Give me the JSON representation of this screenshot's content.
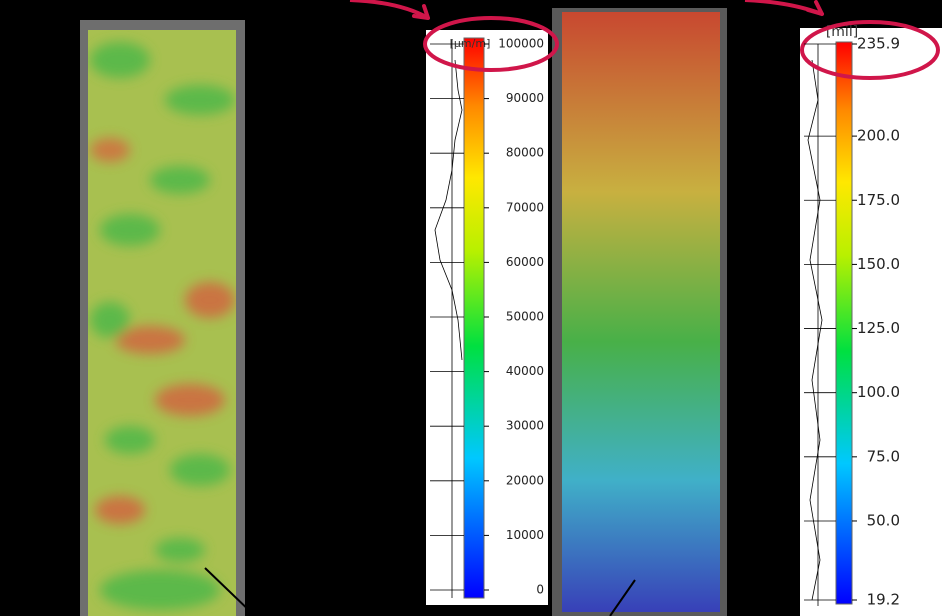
{
  "panels": [
    {
      "unit": "[µm/m]",
      "ticks": [
        {
          "value": 100000,
          "label": "100000"
        },
        {
          "value": 90000,
          "label": "90000"
        },
        {
          "value": 80000,
          "label": "80000"
        },
        {
          "value": 70000,
          "label": "70000"
        },
        {
          "value": 60000,
          "label": "60000"
        },
        {
          "value": 50000,
          "label": "50000"
        },
        {
          "value": 40000,
          "label": "40000"
        },
        {
          "value": 30000,
          "label": "30000"
        },
        {
          "value": 20000,
          "label": "20000"
        },
        {
          "value": 10000,
          "label": "10000"
        },
        {
          "value": 0,
          "label": "0"
        }
      ]
    },
    {
      "unit": "[mil]",
      "ticks": [
        {
          "value": 235.9,
          "label": "235.9"
        },
        {
          "value": 200,
          "label": "200.0"
        },
        {
          "value": 175,
          "label": "175.0"
        },
        {
          "value": 150,
          "label": "150.0"
        },
        {
          "value": 125,
          "label": "125.0"
        },
        {
          "value": 100,
          "label": "100.0"
        },
        {
          "value": 75,
          "label": "75.0"
        },
        {
          "value": 50,
          "label": "50.0"
        },
        {
          "value": 19.2,
          "label": "19.2"
        }
      ]
    }
  ]
}
